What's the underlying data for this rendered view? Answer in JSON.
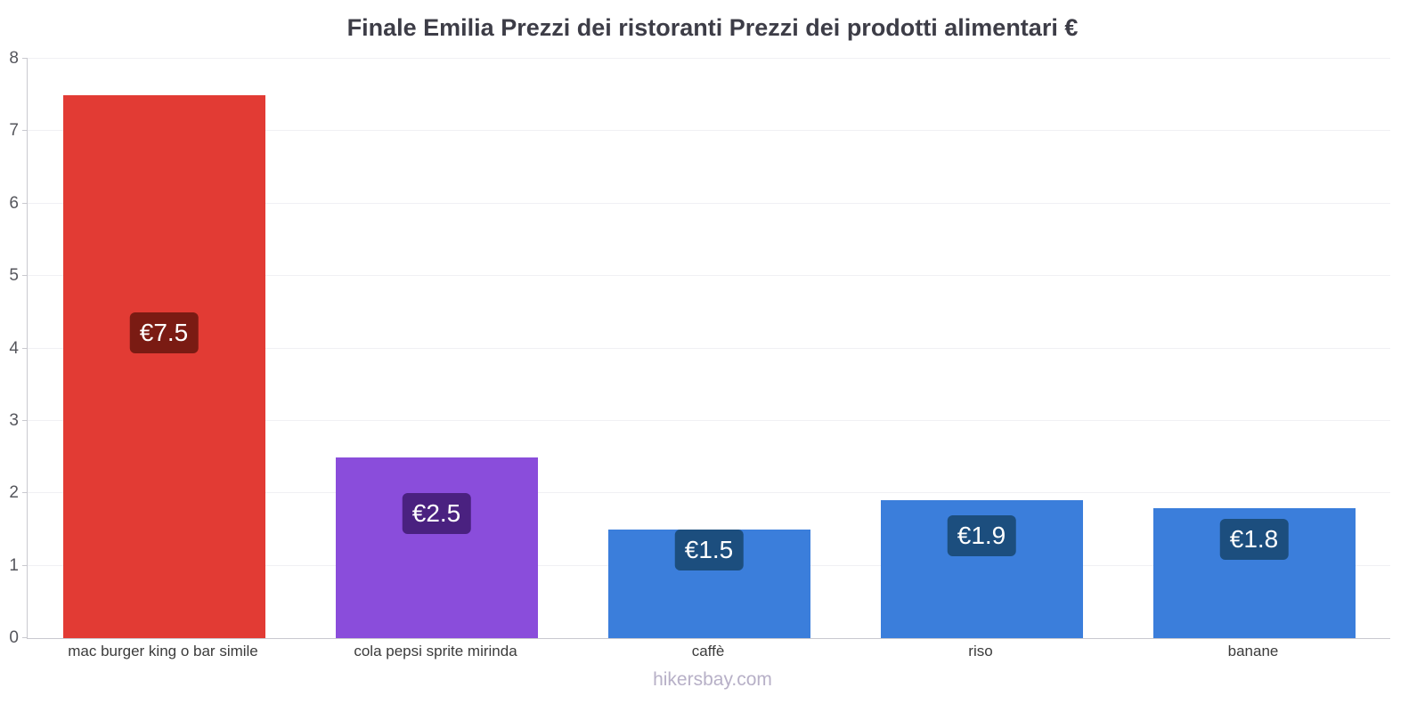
{
  "title": "Finale Emilia Prezzi dei ristoranti Prezzi dei prodotti alimentari €",
  "footer": "hikersbay.com",
  "chart_data": {
    "type": "bar",
    "title": "Finale Emilia Prezzi dei ristoranti Prezzi dei prodotti alimentari €",
    "categories": [
      "mac burger king o bar simile",
      "cola pepsi sprite mirinda",
      "caffè",
      "riso",
      "banane"
    ],
    "values": [
      7.5,
      2.5,
      1.5,
      1.9,
      1.8
    ],
    "value_labels": [
      "€7.5",
      "€2.5",
      "€1.5",
      "€1.9",
      "€1.8"
    ],
    "bar_colors": [
      "#e23b34",
      "#8a4ddb",
      "#3b7edb",
      "#3b7edb",
      "#3b7edb"
    ],
    "label_bg_colors": [
      "#7a1b13",
      "#4a2180",
      "#1c4e7e",
      "#1c4e7e",
      "#1c4e7e"
    ],
    "xlabel": "",
    "ylabel": "",
    "ylim": [
      0,
      8
    ],
    "yticks": [
      0,
      1,
      2,
      3,
      4,
      5,
      6,
      7,
      8
    ],
    "grid": true,
    "legend": "none",
    "currency": "€"
  }
}
